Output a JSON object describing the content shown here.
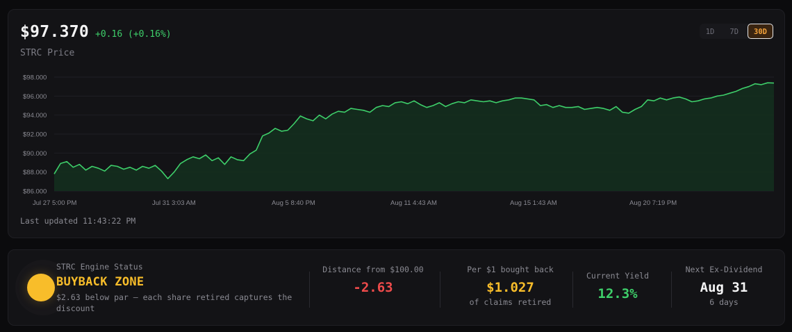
{
  "header": {
    "price": "$97.370",
    "change": "+0.16 (+0.16%)",
    "label": "STRC Price"
  },
  "range_tabs": [
    {
      "label": "1D",
      "active": false
    },
    {
      "label": "7D",
      "active": false
    },
    {
      "label": "30D",
      "active": true
    }
  ],
  "updated": "Last updated 11:43:22 PM",
  "colors": {
    "line": "#3ecf6a",
    "fill": "#14301f",
    "accent": "#f8bd2a",
    "negative": "#ef4b4b"
  },
  "chart_data": {
    "type": "area",
    "ylim": [
      86,
      98
    ],
    "y_ticks": [
      "$98.000",
      "$96.000",
      "$94.000",
      "$92.000",
      "$90.000",
      "$88.000",
      "$86.000"
    ],
    "x_tick_labels": [
      "Jul 27 5:00 PM",
      "Jul 31 3:03 AM",
      "Aug 5 8:40 PM",
      "Aug 11 4:43 AM",
      "Aug 15 1:43 AM",
      "Aug 20 7:19 PM"
    ],
    "grid": true,
    "series": [
      {
        "values": [
          87.8,
          88.9,
          89.1,
          88.5,
          88.8,
          88.2,
          88.6,
          88.4,
          88.1,
          88.7,
          88.6,
          88.3,
          88.5,
          88.2,
          88.6,
          88.4,
          88.7,
          88.1,
          87.3,
          88.0,
          88.9,
          89.3,
          89.6,
          89.4,
          89.8,
          89.2,
          89.5,
          88.8,
          89.6,
          89.3,
          89.2,
          89.9,
          90.3,
          91.8,
          92.1,
          92.6,
          92.3,
          92.4,
          93.1,
          93.9,
          93.6,
          93.4,
          94.0,
          93.6,
          94.1,
          94.4,
          94.3,
          94.7,
          94.6,
          94.5,
          94.3,
          94.8,
          95.0,
          94.9,
          95.3,
          95.4,
          95.2,
          95.5,
          95.1,
          94.8,
          95.0,
          95.3,
          94.9,
          95.2,
          95.4,
          95.3,
          95.6,
          95.5,
          95.4,
          95.5,
          95.3,
          95.5,
          95.6,
          95.8,
          95.8,
          95.7,
          95.6,
          95.0,
          95.1,
          94.8,
          95.0,
          94.8,
          94.8,
          94.9,
          94.6,
          94.7,
          94.8,
          94.7,
          94.5,
          94.9,
          94.3,
          94.2,
          94.6,
          94.9,
          95.6,
          95.5,
          95.8,
          95.6,
          95.8,
          95.9,
          95.7,
          95.4,
          95.5,
          95.7,
          95.8,
          96.0,
          96.1,
          96.3,
          96.5,
          96.8,
          97.0,
          97.3,
          97.2,
          97.4,
          97.37
        ]
      }
    ]
  },
  "status": {
    "engine_label": "STRC Engine Status",
    "engine_state": "BUYBACK ZONE",
    "engine_desc": "$2.63 below par — each share retired captures the discount",
    "metrics": [
      {
        "label": "Distance from $100.00",
        "value": "-2.63",
        "sub": ""
      },
      {
        "label": "Per $1 bought back",
        "value": "$1.027",
        "sub": "of claims retired"
      },
      {
        "label": "Current Yield",
        "value": "12.3%",
        "sub": ""
      },
      {
        "label": "Next Ex-Dividend",
        "value": "Aug 31",
        "sub": "6 days"
      }
    ]
  }
}
